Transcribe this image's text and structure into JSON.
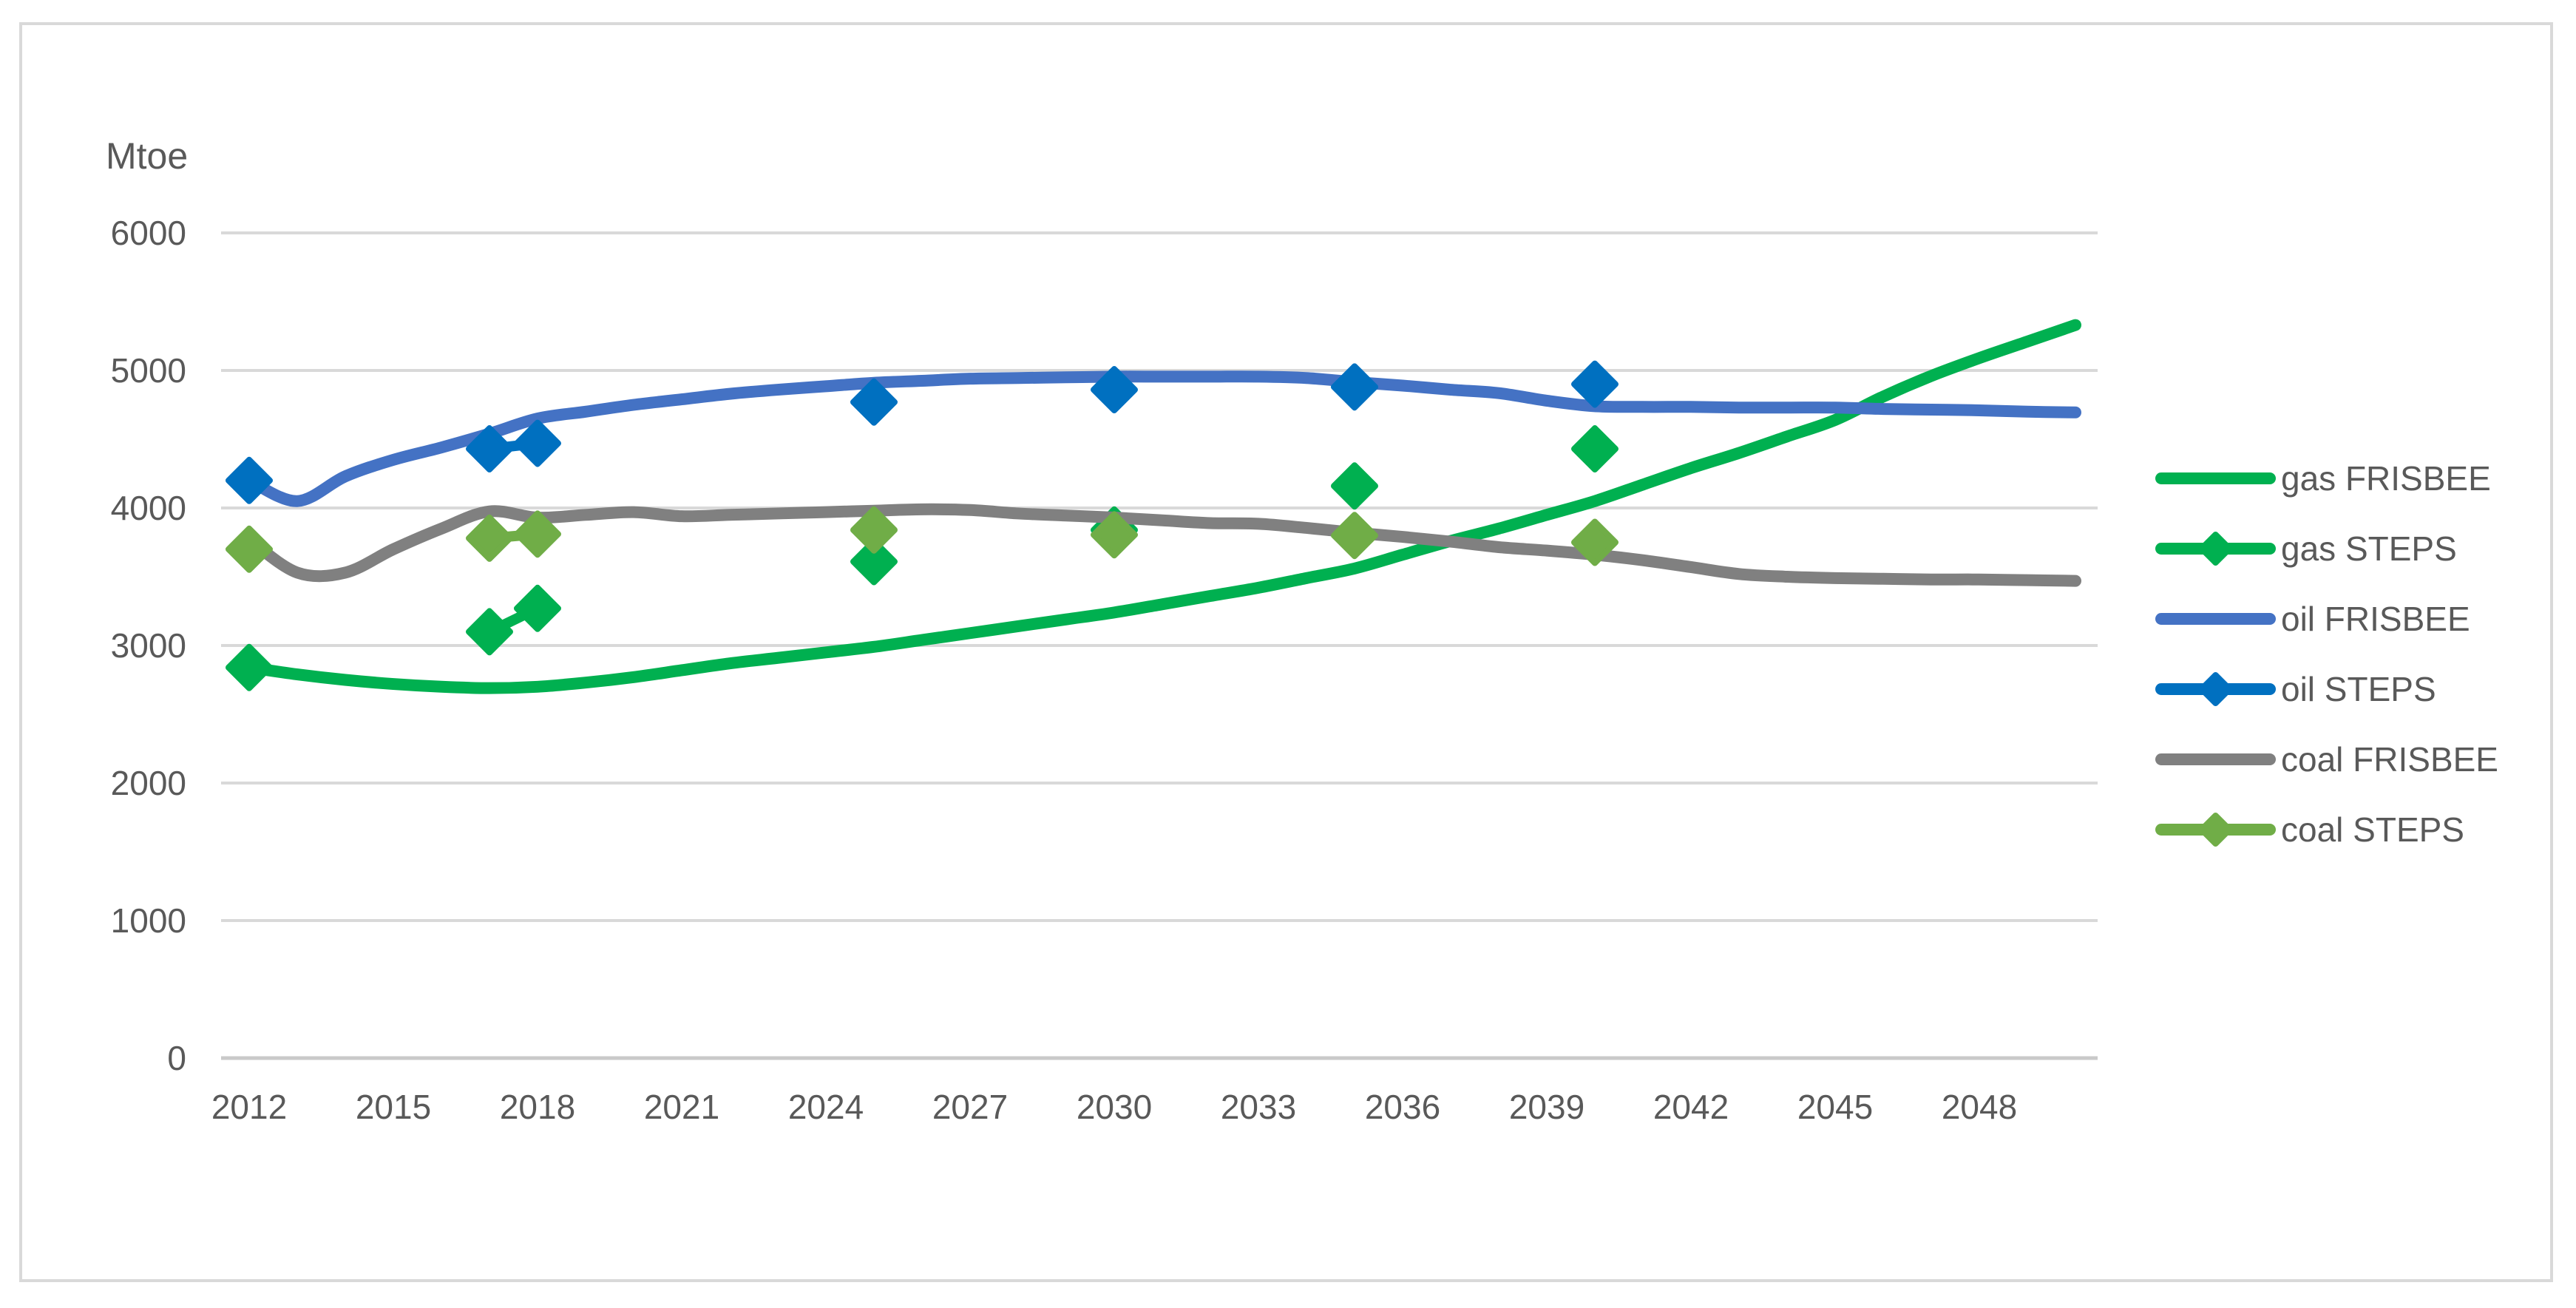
{
  "page": {
    "background_color": "#FFFFFF",
    "border_color": "#D9D9D9",
    "text_color": "#595959"
  },
  "chart_data": {
    "type": "line",
    "unit_label": "Mtoe",
    "title": "",
    "xlabel": "",
    "ylabel": "Mtoe",
    "ylim": [
      0,
      6000
    ],
    "xlim": [
      2012,
      2050
    ],
    "grid": true,
    "gridline_color": "#D9D9D9",
    "axis_line_color": "#C9C9C9",
    "legend_position": "right",
    "y_ticks": [
      0,
      1000,
      2000,
      3000,
      4000,
      5000,
      6000
    ],
    "x_ticks": [
      2012,
      2015,
      2018,
      2021,
      2024,
      2027,
      2030,
      2033,
      2036,
      2039,
      2042,
      2045,
      2048
    ],
    "years": [
      2012,
      2013,
      2014,
      2015,
      2016,
      2017,
      2018,
      2019,
      2020,
      2021,
      2022,
      2023,
      2024,
      2025,
      2026,
      2027,
      2028,
      2029,
      2030,
      2031,
      2032,
      2033,
      2034,
      2035,
      2036,
      2037,
      2038,
      2039,
      2040,
      2041,
      2042,
      2043,
      2044,
      2045,
      2046,
      2047,
      2048,
      2049,
      2050
    ],
    "series": [
      {
        "id": "gas-frisbee",
        "name": "gas FRISBEE",
        "color": "#00B050",
        "style": "line",
        "values": [
          2840,
          2790,
          2750,
          2720,
          2700,
          2690,
          2700,
          2730,
          2770,
          2820,
          2870,
          2910,
          2950,
          2990,
          3040,
          3090,
          3140,
          3190,
          3240,
          3300,
          3360,
          3420,
          3490,
          3560,
          3660,
          3760,
          3850,
          3950,
          4050,
          4170,
          4290,
          4400,
          4520,
          4640,
          4810,
          4960,
          5090,
          5210,
          5330
        ]
      },
      {
        "id": "gas-steps",
        "name": "gas STEPS",
        "color": "#00B050",
        "style": "markers",
        "points": [
          [
            2012,
            2840
          ],
          [
            2017,
            3100
          ],
          [
            2018,
            3270
          ],
          [
            2025,
            3610
          ],
          [
            2030,
            3840
          ],
          [
            2035,
            4160
          ],
          [
            2040,
            4430
          ]
        ]
      },
      {
        "id": "oil-frisbee",
        "name": "oil FRISBEE",
        "color": "#4472C4",
        "style": "line",
        "values": [
          4200,
          4050,
          4230,
          4350,
          4440,
          4540,
          4650,
          4700,
          4750,
          4790,
          4830,
          4860,
          4885,
          4910,
          4925,
          4940,
          4945,
          4950,
          4955,
          4955,
          4955,
          4955,
          4945,
          4915,
          4890,
          4860,
          4835,
          4780,
          4740,
          4735,
          4735,
          4730,
          4730,
          4730,
          4720,
          4715,
          4710,
          4700,
          4695
        ]
      },
      {
        "id": "oil-steps",
        "name": "oil STEPS",
        "color": "#0070C0",
        "style": "markers",
        "points": [
          [
            2012,
            4200
          ],
          [
            2017,
            4430
          ],
          [
            2018,
            4470
          ],
          [
            2025,
            4770
          ],
          [
            2030,
            4860
          ],
          [
            2035,
            4880
          ],
          [
            2040,
            4900
          ]
        ]
      },
      {
        "id": "coal-frisbee",
        "name": "coal FRISBEE",
        "color": "#808080",
        "style": "line",
        "values": [
          3770,
          3530,
          3530,
          3700,
          3850,
          3975,
          3930,
          3950,
          3970,
          3940,
          3950,
          3960,
          3970,
          3980,
          3990,
          3985,
          3960,
          3945,
          3930,
          3910,
          3890,
          3885,
          3855,
          3820,
          3790,
          3755,
          3715,
          3690,
          3660,
          3620,
          3570,
          3520,
          3500,
          3490,
          3485,
          3480,
          3480,
          3475,
          3470
        ]
      },
      {
        "id": "coal-steps",
        "name": "coal STEPS",
        "color": "#70AD47",
        "style": "markers",
        "points": [
          [
            2012,
            3700
          ],
          [
            2017,
            3780
          ],
          [
            2018,
            3810
          ],
          [
            2025,
            3840
          ],
          [
            2030,
            3805
          ],
          [
            2035,
            3800
          ],
          [
            2040,
            3750
          ]
        ]
      }
    ],
    "legend": [
      {
        "series": "gas-frisbee",
        "label": "gas FRISBEE",
        "sample": "line"
      },
      {
        "series": "gas-steps",
        "label": "gas STEPS",
        "sample": "line-marker"
      },
      {
        "series": "oil-frisbee",
        "label": "oil FRISBEE",
        "sample": "line"
      },
      {
        "series": "oil-steps",
        "label": "oil STEPS",
        "sample": "line-marker"
      },
      {
        "series": "coal-frisbee",
        "label": "coal FRISBEE",
        "sample": "line"
      },
      {
        "series": "coal-steps",
        "label": "coal STEPS",
        "sample": "line-marker"
      }
    ]
  }
}
